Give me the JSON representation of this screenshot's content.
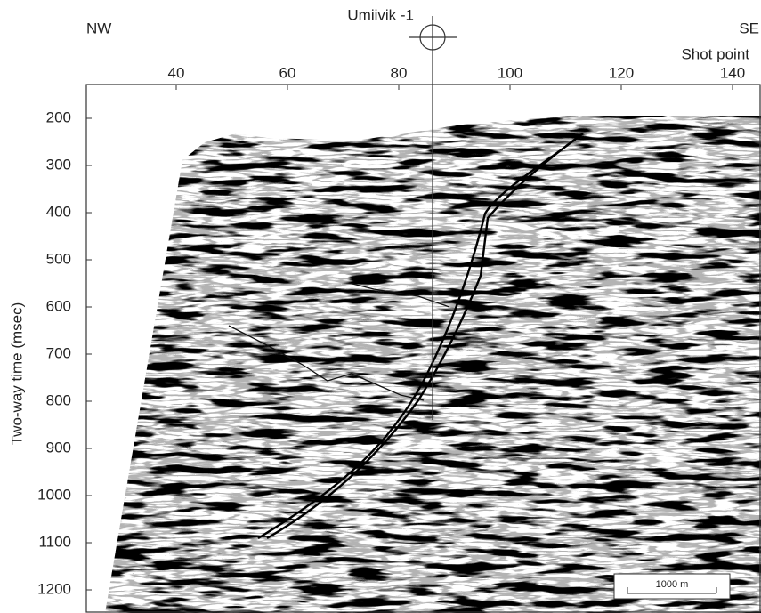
{
  "labels": {
    "left": "NW",
    "right": "SE",
    "well": "Umiivik -1",
    "x_axis": "Shot point",
    "y_axis": "Two-way time (msec)",
    "scale_bar": "1000 m"
  },
  "x_ticks": [
    "40",
    "60",
    "80",
    "100",
    "120",
    "140"
  ],
  "y_ticks": [
    "200",
    "300",
    "400",
    "500",
    "600",
    "700",
    "800",
    "900",
    "1000",
    "1100",
    "1200"
  ]
}
